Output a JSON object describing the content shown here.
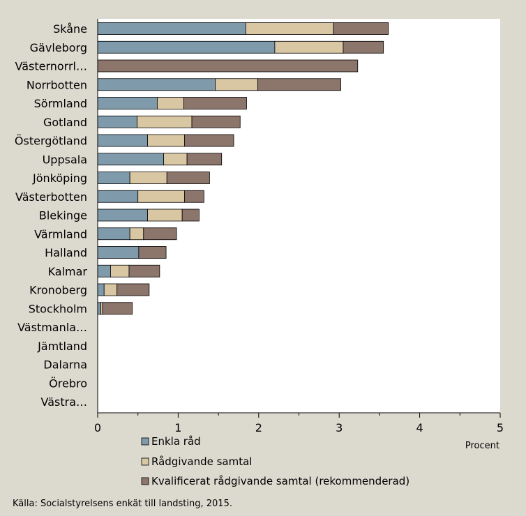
{
  "chart_data": {
    "type": "bar",
    "orientation": "horizontal",
    "stacked": true,
    "categories": [
      "Skåne",
      "Gävleborg",
      "Västernorrl…",
      "Norrbotten",
      "Sörmland",
      "Gotland",
      "Östergötland",
      "Uppsala",
      "Jönköping",
      "Västerbotten",
      "Blekinge",
      "Värmland",
      "Halland",
      "Kalmar",
      "Kronoberg",
      "Stockholm",
      "Västmanla…",
      "Jämtland",
      "Dalarna",
      "Örebro",
      "Västra…"
    ],
    "series": [
      {
        "name": "Enkla råd",
        "color": "#7f9bab",
        "values": [
          1.84,
          2.2,
          0,
          1.46,
          0.74,
          0.49,
          0.62,
          0.82,
          0.4,
          0.5,
          0.62,
          0.4,
          0.51,
          0.16,
          0.08,
          0.04,
          0,
          0,
          0,
          0,
          0
        ]
      },
      {
        "name": "Rådgivande samtal",
        "color": "#d9c7a4",
        "values": [
          1.09,
          0.85,
          0,
          0.53,
          0.33,
          0.68,
          0.46,
          0.29,
          0.46,
          0.58,
          0.43,
          0.17,
          0,
          0.23,
          0.16,
          0.02,
          0,
          0,
          0,
          0,
          0
        ]
      },
      {
        "name": "Kvalificerat rådgivande samtal (rekommenderad)",
        "color": "#8c756b",
        "values": [
          0.68,
          0.5,
          3.23,
          1.03,
          0.78,
          0.6,
          0.61,
          0.43,
          0.53,
          0.24,
          0.21,
          0.41,
          0.34,
          0.38,
          0.4,
          0.37,
          0,
          0,
          0,
          0,
          0
        ]
      }
    ],
    "x_ticks": [
      "0",
      "1",
      "2",
      "3",
      "4",
      "5"
    ],
    "xlim": [
      0,
      5
    ],
    "xlabel": "Procent",
    "grid": false,
    "legend_position": "bottom"
  },
  "source": "Källa: Socialstyrelsens enkät till landsting, 2015."
}
